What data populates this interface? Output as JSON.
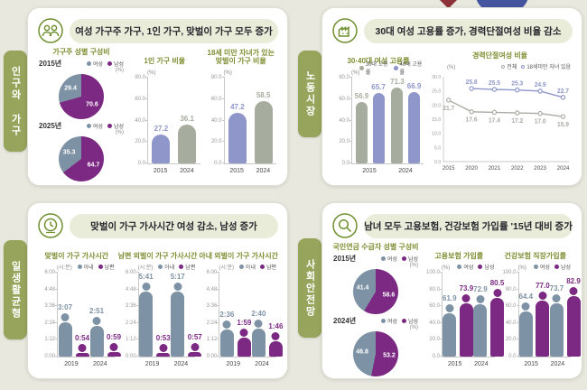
{
  "colors": {
    "purple": "#7b2982",
    "slate": "#7e92a5",
    "periwinkle": "#8e96ca",
    "sage": "#a6ad9f",
    "grayline": "#a9aba3",
    "olive": "#7f8e33",
    "tab_green": "#97a45b",
    "pill_bg": "#e9ecd9",
    "icon_green": "#6f8f2f",
    "background": "#e9e8df"
  },
  "panels": [
    {
      "tab": "인구와 가구",
      "title": "여성 가구주 가구, 1인 가구, 맞벌이 가구 모두 증가",
      "chart_refs": [
        0,
        1,
        2
      ]
    },
    {
      "tab": "노동시장",
      "title": "30대 여성 고용률 증가, 경력단절여성 비율 감소",
      "chart_refs": [
        3,
        4
      ]
    },
    {
      "tab": "일생활균형",
      "title": "맞벌이 가구 가사시간 여성 감소, 남성 증가",
      "chart_refs": [
        5,
        6,
        7
      ]
    },
    {
      "tab": "사회안전망",
      "title": "남녀 모두 고용보험, 건강보험 가입률 '15년 대비 증가",
      "chart_refs": [
        8,
        9,
        10
      ]
    }
  ],
  "chart_data": [
    {
      "type": "pie-pair",
      "subtitle": "가구주 성별 구성비",
      "unit": "(%)",
      "legend": [
        {
          "label": "여성",
          "color": "slate"
        },
        {
          "label": "남성",
          "color": "purple"
        }
      ],
      "pies": [
        {
          "year": "2015년",
          "slices": [
            {
              "label": "남성",
              "value": 70.6,
              "color": "purple"
            },
            {
              "label": "여성",
              "value": 29.4,
              "color": "slate"
            }
          ]
        },
        {
          "year": "2025년",
          "slices": [
            {
              "label": "남성",
              "value": 64.7,
              "color": "purple"
            },
            {
              "label": "여성",
              "value": 35.3,
              "color": "slate"
            }
          ]
        }
      ]
    },
    {
      "type": "bars",
      "subtitle": "1인 가구 비율",
      "unit": "(%)",
      "ymax": 80,
      "yticks": [
        "0.0",
        "20.0",
        "40.0",
        "60.0",
        "80.0"
      ],
      "categories": [
        "2015",
        "2024"
      ],
      "bars": [
        {
          "value": 27.2,
          "label": "27.2",
          "color": "periwinkle"
        },
        {
          "value": 36.1,
          "label": "36.1",
          "color": "sage"
        }
      ]
    },
    {
      "type": "bars",
      "subtitle": "18세 미만 자녀가 있는\n맞벌이 가구 비율",
      "unit": "(%)",
      "ymax": 80,
      "yticks": [
        "0.0",
        "20.0",
        "40.0",
        "60.0",
        "80.0"
      ],
      "categories": [
        "2015",
        "2024"
      ],
      "bars": [
        {
          "value": 47.2,
          "label": "47.2",
          "color": "periwinkle"
        },
        {
          "value": 58.5,
          "label": "58.5",
          "color": "sage"
        }
      ]
    },
    {
      "type": "group-bars",
      "subtitle": "30·40대 여성 고용률",
      "unit": "(%)",
      "ymax": 80,
      "yticks": [
        "0.0",
        "20.0",
        "40.0",
        "60.0",
        "80.0"
      ],
      "categories": [
        "2015",
        "2024"
      ],
      "series": [
        {
          "name": "30대 고용률",
          "color": "sage",
          "values": [
            56.9,
            71.3
          ],
          "labels": [
            "56.9",
            "71.3"
          ]
        },
        {
          "name": "40대 고용률",
          "color": "periwinkle",
          "values": [
            65.7,
            66.9
          ],
          "labels": [
            "65.7",
            "66.9"
          ]
        }
      ]
    },
    {
      "type": "line",
      "subtitle": "경력단절여성 비율",
      "unit": "(%)",
      "ymax": 30,
      "yticks": [
        "0.0",
        "5.0",
        "10.0",
        "15.0",
        "20.0",
        "25.0",
        "30.0"
      ],
      "x": [
        "2015",
        "2020",
        "2021",
        "2022",
        "2023",
        "2024"
      ],
      "legend": [
        {
          "label": "전체",
          "color": "grayline"
        },
        {
          "label": "18세미만 자녀 있음",
          "color": "periwinkle"
        }
      ],
      "series": [
        {
          "name": "18세미만 자녀 있음",
          "color": "periwinkle",
          "labelSide": "above",
          "values": [
            null,
            25.8,
            25.5,
            25.3,
            24.9,
            22.7
          ],
          "labels": [
            "",
            "25.8",
            "25.5",
            "25.3",
            "24.9",
            "22.7"
          ]
        },
        {
          "name": "전체",
          "color": "grayline",
          "labelSide": "below",
          "values": [
            21.7,
            17.6,
            17.4,
            17.2,
            17.0,
            15.9
          ],
          "labels": [
            "21.7",
            "17.6",
            "17.4",
            "17.2",
            "17.0",
            "15.9"
          ]
        }
      ]
    },
    {
      "type": "person-bars",
      "subtitle": "맞벌이 가구 가사시간",
      "unit": "(시:분)",
      "ymax": 360,
      "yticks": [
        "0:00",
        "1:12",
        "2:24",
        "3:36",
        "4:48",
        "6:00"
      ],
      "categories": [
        "2019",
        "2024"
      ],
      "legend": [
        {
          "label": "아내",
          "color": "slate"
        },
        {
          "label": "남편",
          "color": "purple"
        }
      ],
      "series": [
        {
          "name": "아내",
          "color": "slate",
          "values": [
            187,
            171
          ],
          "labels": [
            "3:07",
            "2:51"
          ]
        },
        {
          "name": "남편",
          "color": "purple",
          "values": [
            54,
            59
          ],
          "labels": [
            "0:54",
            "0:59"
          ]
        }
      ]
    },
    {
      "type": "person-bars",
      "subtitle": "남편 외벌이 가구 가사시간",
      "unit": "(시:분)",
      "ymax": 360,
      "yticks": [
        "0:00",
        "1:12",
        "2:24",
        "3:36",
        "4:48",
        "6:00"
      ],
      "categories": [
        "2019",
        "2024"
      ],
      "legend": [
        {
          "label": "아내",
          "color": "slate"
        },
        {
          "label": "남편",
          "color": "purple"
        }
      ],
      "series": [
        {
          "name": "아내",
          "color": "slate",
          "values": [
            341,
            317
          ],
          "labels": [
            "5:41",
            "5:17"
          ]
        },
        {
          "name": "남편",
          "color": "purple",
          "values": [
            53,
            57
          ],
          "labels": [
            "0:53",
            "0:57"
          ]
        }
      ]
    },
    {
      "type": "person-bars",
      "subtitle": "아내 외벌이 가구 가사시간",
      "unit": "(시:분)",
      "ymax": 360,
      "yticks": [
        "0:00",
        "1:12",
        "2:24",
        "3:36",
        "4:48",
        "6:00"
      ],
      "categories": [
        "2019",
        "2024"
      ],
      "legend": [
        {
          "label": "아내",
          "color": "slate"
        },
        {
          "label": "남편",
          "color": "purple"
        }
      ],
      "series": [
        {
          "name": "아내",
          "color": "slate",
          "values": [
            156,
            160
          ],
          "labels": [
            "2:36",
            "2:40"
          ]
        },
        {
          "name": "남편",
          "color": "purple",
          "values": [
            119,
            106
          ],
          "labels": [
            "1:59",
            "1:46"
          ]
        }
      ]
    },
    {
      "type": "pie-pair",
      "subtitle": "국민연금 수급자 성별 구성비",
      "unit": "(%)",
      "legend": [
        {
          "label": "여성",
          "color": "slate"
        },
        {
          "label": "남성",
          "color": "purple"
        }
      ],
      "pies": [
        {
          "year": "2015년",
          "slices": [
            {
              "label": "남성",
              "value": 58.6,
              "color": "purple"
            },
            {
              "label": "여성",
              "value": 41.4,
              "color": "slate"
            }
          ]
        },
        {
          "year": "2024년",
          "slices": [
            {
              "label": "남성",
              "value": 53.2,
              "color": "purple"
            },
            {
              "label": "여성",
              "value": 46.8,
              "color": "slate"
            }
          ]
        }
      ]
    },
    {
      "type": "person-bars",
      "subtitle": "고용보험 가입률",
      "unit": "(%)",
      "ymax": 100,
      "yticks": [
        "0.0",
        "20.0",
        "40.0",
        "60.0",
        "80.0",
        "100.0"
      ],
      "categories": [
        "2015",
        "2024"
      ],
      "legend": [
        {
          "label": "여성",
          "color": "slate"
        },
        {
          "label": "남성",
          "color": "purple"
        }
      ],
      "series": [
        {
          "name": "여성",
          "color": "slate",
          "values": [
            61.9,
            72.9
          ],
          "labels": [
            "61.9",
            "72.9"
          ]
        },
        {
          "name": "남성",
          "color": "purple",
          "values": [
            73.9,
            80.5
          ],
          "labels": [
            "73.9",
            "80.5"
          ]
        }
      ]
    },
    {
      "type": "person-bars",
      "subtitle": "건강보험 직장가입률",
      "unit": "(%)",
      "ymax": 100,
      "yticks": [
        "0.0",
        "20.0",
        "40.0",
        "60.0",
        "80.0",
        "100.0"
      ],
      "categories": [
        "2015",
        "2024"
      ],
      "legend": [
        {
          "label": "여성",
          "color": "slate"
        },
        {
          "label": "남성",
          "color": "purple"
        }
      ],
      "series": [
        {
          "name": "여성",
          "color": "slate",
          "values": [
            64.4,
            73.7
          ],
          "labels": [
            "64.4",
            "73.7"
          ]
        },
        {
          "name": "남성",
          "color": "purple",
          "values": [
            77.0,
            82.9
          ],
          "labels": [
            "77.0",
            "82.9"
          ]
        }
      ]
    }
  ]
}
